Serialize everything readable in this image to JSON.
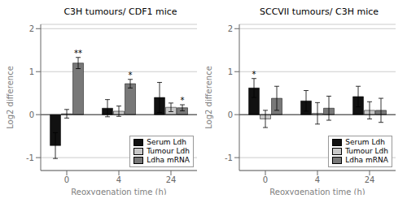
{
  "chart_data": [
    {
      "type": "bar",
      "title": "C3H tumours/ CDF1 mice",
      "xlabel": "Reoxygenation time (h)",
      "ylabel": "Log2 difference",
      "categories": [
        "0",
        "4",
        "24"
      ],
      "series": [
        {
          "name": "Serum Ldh",
          "color": "#111111",
          "values": [
            -0.72,
            0.15,
            0.4
          ],
          "errors": [
            0.3,
            0.2,
            0.35
          ]
        },
        {
          "name": "Tumour Ldh",
          "color": "#c8c8c8",
          "values": [
            0.02,
            0.08,
            0.17
          ],
          "errors": [
            0.1,
            0.12,
            0.1
          ]
        },
        {
          "name": "Ldha mRNA",
          "color": "#787878",
          "values": [
            1.2,
            0.72,
            0.16
          ],
          "errors": [
            0.13,
            0.1,
            0.07
          ],
          "annotations": [
            {
              "category": "0",
              "text": "**"
            },
            {
              "category": "4",
              "text": "*"
            },
            {
              "category": "24",
              "text": "*"
            }
          ]
        }
      ],
      "ylim": [
        -1.3,
        2.1
      ],
      "yticks": [
        -1,
        0,
        1,
        2
      ],
      "grid": true,
      "legend": "lower right"
    },
    {
      "type": "bar",
      "title": "SCCVII tumours/ C3H mice",
      "xlabel": "Reoxygenation time (h)",
      "ylabel": "Log2 difference",
      "categories": [
        "0",
        "4",
        "24"
      ],
      "series": [
        {
          "name": "Serum Ldh",
          "color": "#111111",
          "values": [
            0.62,
            0.32,
            0.42
          ],
          "errors": [
            0.22,
            0.24,
            0.24
          ],
          "annotations": [
            {
              "category": "0",
              "text": "*"
            }
          ]
        },
        {
          "name": "Tumour Ldh",
          "color": "#c8c8c8",
          "values": [
            -0.1,
            0.03,
            0.1
          ],
          "errors": [
            0.2,
            0.25,
            0.2
          ]
        },
        {
          "name": "Ldha mRNA",
          "color": "#787878",
          "values": [
            0.38,
            0.15,
            0.1
          ],
          "errors": [
            0.28,
            0.28,
            0.28
          ]
        }
      ],
      "ylim": [
        -1.3,
        2.1
      ],
      "yticks": [
        -1,
        0,
        1,
        2
      ],
      "grid": true,
      "legend": "lower right"
    }
  ]
}
